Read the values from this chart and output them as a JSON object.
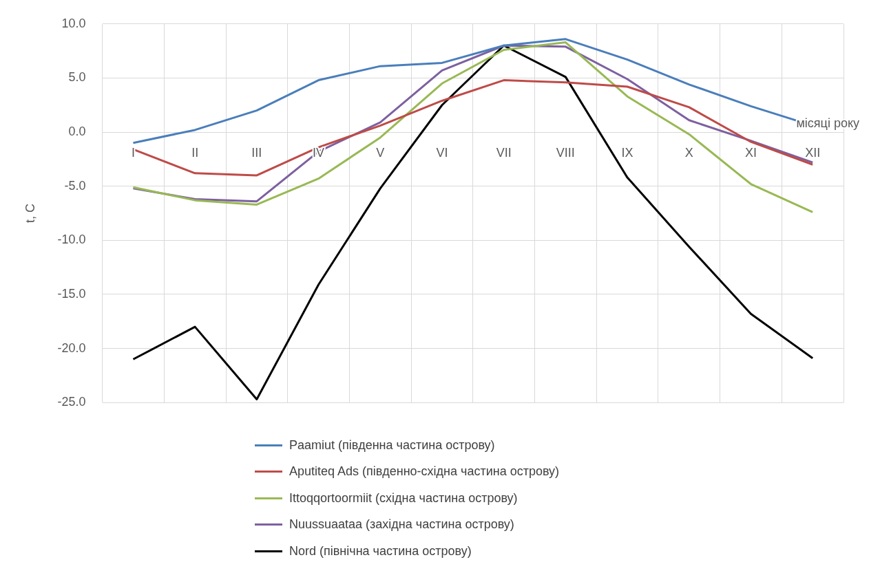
{
  "chart_data": {
    "type": "line",
    "xlabel": "місяці року",
    "ylabel": "t, C",
    "categories": [
      "I",
      "II",
      "III",
      "IV",
      "V",
      "VI",
      "VII",
      "VIII",
      "IX",
      "X",
      "XI",
      "XII"
    ],
    "series": [
      {
        "name": "Paamiut (південна частина острову)",
        "color": "#4a7ebb",
        "values": [
          -1.0,
          0.2,
          2.0,
          4.8,
          6.1,
          6.4,
          8.0,
          8.6,
          6.7,
          4.4,
          2.4,
          0.6
        ]
      },
      {
        "name": "Aputiteq Ads (південно-східна частина острову)",
        "color": "#be4b48",
        "values": [
          -1.6,
          -3.8,
          -4.0,
          -1.4,
          0.6,
          2.9,
          4.8,
          4.6,
          4.2,
          2.3,
          -0.9,
          -3.0
        ]
      },
      {
        "name": "Ittoqqortoormiit (східна частина острову)",
        "color": "#98b954",
        "values": [
          -5.1,
          -6.3,
          -6.7,
          -4.3,
          -0.5,
          4.5,
          7.6,
          8.3,
          3.3,
          -0.2,
          -4.8,
          -7.4
        ]
      },
      {
        "name": "Nuussuaataa (західна частина острову)",
        "color": "#7d60a0",
        "values": [
          -5.2,
          -6.2,
          -6.4,
          -1.8,
          0.9,
          5.7,
          8.0,
          7.9,
          4.9,
          1.1,
          -0.8,
          -2.8
        ]
      },
      {
        "name": "Nord (північна частина острову)",
        "color": "#000000",
        "values": [
          -21.0,
          -18.0,
          -24.7,
          -14.1,
          -5.2,
          2.5,
          8.0,
          5.1,
          -4.2,
          -10.6,
          -16.8,
          -20.9
        ]
      }
    ],
    "ylim": [
      -25,
      10
    ],
    "yticks": [
      {
        "value": -25,
        "label": "-25.0"
      },
      {
        "value": -20,
        "label": "-20.0"
      },
      {
        "value": -15,
        "label": "-15.0"
      },
      {
        "value": -10,
        "label": "-10.0"
      },
      {
        "value": -5,
        "label": "-5.0"
      },
      {
        "value": 0,
        "label": "0.0"
      },
      {
        "value": 5,
        "label": "5.0"
      },
      {
        "value": 10,
        "label": "10.0"
      }
    ],
    "grid": true,
    "legend": "bottom",
    "marker": "none",
    "line_style": "solid"
  }
}
